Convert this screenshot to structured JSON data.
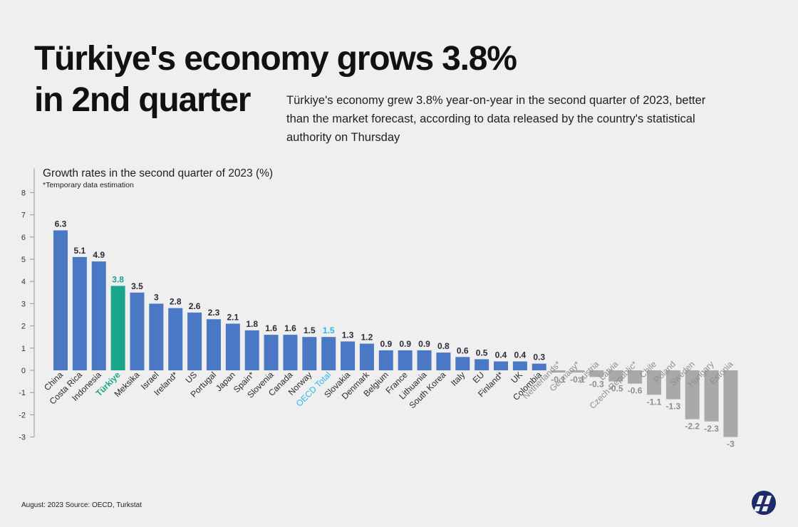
{
  "header": {
    "title_line1": "Türkiye's economy grows 3.8%",
    "title_line2": "in 2nd quarter",
    "subtitle": "Türkiye's economy grew 3.8% year-on-year in the second quarter of 2023, better than the market forecast, according to data released by the country's statistical authority on Thursday"
  },
  "footer": {
    "source": "August: 2023  Source: OECD, Turkstat"
  },
  "logo": {
    "name": "aa-logo-icon"
  },
  "colors": {
    "positive": "#4a78c4",
    "highlight": "#1aa58c",
    "oecd": "#29b6e8",
    "negative": "#a9a9a9",
    "value_dark": "#2b2b3a",
    "value_gray": "#8e8e8e"
  },
  "chart_data": {
    "type": "bar",
    "title": "Growth rates in the second quarter of 2023 (%)",
    "note": "*Temporary data estimation",
    "ylim": [
      -3,
      8
    ],
    "yticks": [
      8,
      7,
      6,
      5,
      4,
      3,
      2,
      1,
      0,
      -1,
      -2,
      -3
    ],
    "categories": [
      "China",
      "Costa Rica",
      "Indonesia",
      "Türkiye",
      "Meksika",
      "Israel",
      "Ireland*",
      "US",
      "Portugal",
      "Japan",
      "Spain*",
      "Slovenia",
      "Canada",
      "Norway",
      "OECD Total",
      "Slovakia",
      "Denmark",
      "Belgium",
      "France",
      "Lithuania",
      "South Korea",
      "Italy",
      "EU",
      "Finland*",
      "UK",
      "Colombia",
      "Netherlands*",
      "Germany*",
      "Austria",
      "Latvia",
      "Czech Republic*",
      "Chile",
      "Poland",
      "Sweden",
      "Hungary",
      "Estonia"
    ],
    "values": [
      6.3,
      5.1,
      4.9,
      3.8,
      3.5,
      3,
      2.8,
      2.6,
      2.3,
      2.1,
      1.8,
      1.6,
      1.6,
      1.5,
      1.5,
      1.3,
      1.2,
      0.9,
      0.9,
      0.9,
      0.8,
      0.6,
      0.5,
      0.4,
      0.4,
      0.3,
      -0.1,
      -0.1,
      -0.3,
      -0.5,
      -0.6,
      -1.1,
      -1.3,
      -2.2,
      -2.3,
      -3
    ],
    "value_labels": [
      "6.3",
      "5.1",
      "4.9",
      "3.8",
      "3.5",
      "3",
      "2.8",
      "2.6",
      "2.3",
      "2.1",
      "1.8",
      "1.6",
      "1.6",
      "1.5",
      "1.5",
      "1.3",
      "1.2",
      "0.9",
      "0.9",
      "0.9",
      "0.8",
      "0.6",
      "0.5",
      "0.4",
      "0.4",
      "0.3",
      "-0.1",
      "-0.1",
      "-0.3",
      "-0.5",
      "-0.6",
      "-1.1",
      "-1.3",
      "-2.2",
      "-2.3",
      "-3"
    ],
    "highlighted": {
      "Türkiye": "highlight",
      "OECD Total": "oecd"
    }
  }
}
